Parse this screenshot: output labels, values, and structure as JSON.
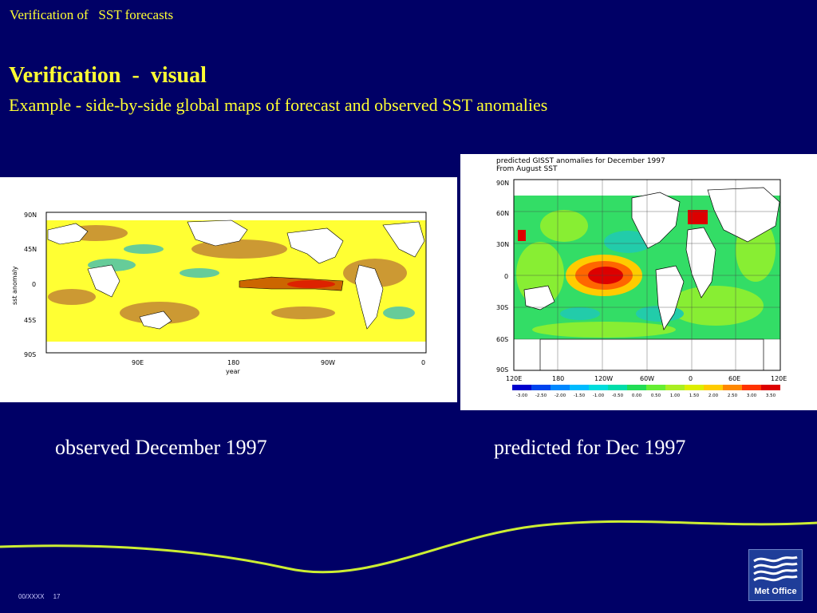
{
  "header": {
    "text": "Verification of   SST forecasts"
  },
  "title": "Verification  -  visual",
  "subtitle": "Example - side-by-side global maps of forecast and observed SST anomalies",
  "observed_map": {
    "lat_labels": [
      "90N",
      "45N",
      "0",
      "45S",
      "90S"
    ],
    "lon_labels": [
      "90E",
      "180",
      "90W",
      "0"
    ],
    "xlabel": "year",
    "ylabel": "sst anomaly"
  },
  "predicted_map": {
    "title_line1": "predicted GISST anomalies for December 1997",
    "title_line2": "From August SST",
    "lat_labels": [
      "90N",
      "60N",
      "30N",
      "0",
      "30S",
      "60S",
      "90S"
    ],
    "lon_labels": [
      "120E",
      "180",
      "120W",
      "60W",
      "0",
      "60E",
      "120E"
    ],
    "colorbar_labels": [
      "-3.00",
      "-2.50",
      "-2.00",
      "-1.50",
      "-1.00",
      "-0.50",
      "0.00",
      "0.50",
      "1.00",
      "1.50",
      "2.00",
      "2.50",
      "3.00",
      "3.50"
    ],
    "colorbar_colors": [
      "#0000cc",
      "#0044ee",
      "#0088ff",
      "#00bbff",
      "#00dddd",
      "#00ddaa",
      "#22dd55",
      "#66ee33",
      "#aaee22",
      "#ddee00",
      "#ffcc00",
      "#ff8800",
      "#ff3300",
      "#dd0000"
    ]
  },
  "captions": {
    "observed": "observed December 1997",
    "predicted": "predicted for Dec 1997"
  },
  "footer": {
    "text": "00/XXXX     17"
  },
  "logo": {
    "text": "Met Office",
    "icon": "met-office-wave-icon"
  }
}
